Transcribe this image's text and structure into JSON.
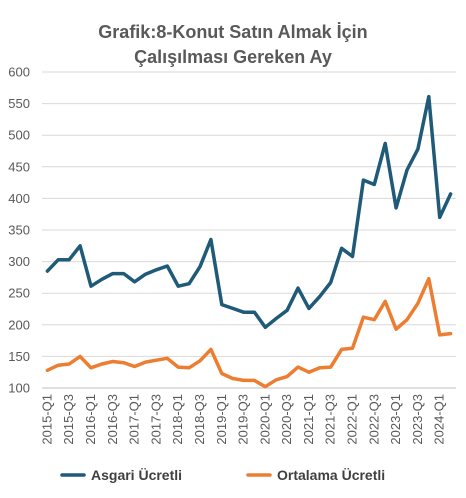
{
  "chart_data": {
    "type": "line",
    "title_lines": [
      "Grafik:8-Konut Satın Almak İçin",
      "Çalışılması Gereken Ay"
    ],
    "xlabel": "",
    "ylabel": "",
    "ylim": [
      100,
      600
    ],
    "yticks": [
      100,
      150,
      200,
      250,
      300,
      350,
      400,
      450,
      500,
      550,
      600
    ],
    "grid": true,
    "legend_position": "bottom",
    "x": [
      "2015-Q1",
      "2015-Q2",
      "2015-Q3",
      "2015-Q4",
      "2016-Q1",
      "2016-Q2",
      "2016-Q3",
      "2016-Q4",
      "2017-Q1",
      "2017-Q2",
      "2017-Q3",
      "2017-Q4",
      "2018-Q1",
      "2018-Q2",
      "2018-Q3",
      "2018-Q4",
      "2019-Q1",
      "2019-Q2",
      "2019-Q3",
      "2019-Q4",
      "2020-Q1",
      "2020-Q2",
      "2020-Q3",
      "2020-Q4",
      "2021-Q1",
      "2021-Q2",
      "2021-Q3",
      "2021-Q4",
      "2022-Q1",
      "2022-Q2",
      "2022-Q3",
      "2022-Q4",
      "2023-Q1",
      "2023-Q2",
      "2023-Q3",
      "2023-Q4",
      "2024-Q1",
      "2024-Q2"
    ],
    "xtick_labels": [
      "2015-Q1",
      "2015-Q3",
      "2016-Q1",
      "2016-Q3",
      "2017-Q1",
      "2017-Q3",
      "2018-Q1",
      "2018-Q3",
      "2019-Q1",
      "2019-Q3",
      "2020-Q1",
      "2020-Q3",
      "2021-Q1",
      "2021-Q3",
      "2022-Q1",
      "2022-Q3",
      "2023-Q1",
      "2023-Q3",
      "2024-Q1"
    ],
    "series": [
      {
        "name": "Asgari Ücretli",
        "color": "#1f5a78",
        "values": [
          285,
          303,
          303,
          325,
          261,
          272,
          281,
          281,
          268,
          280,
          287,
          293,
          261,
          265,
          292,
          335,
          232,
          226,
          220,
          220,
          196,
          210,
          223,
          258,
          226,
          245,
          267,
          321,
          308,
          429,
          422,
          487,
          385,
          445,
          478,
          561,
          370,
          407
        ]
      },
      {
        "name": "Ortalama Ücretli",
        "color": "#ed7d31",
        "values": [
          128,
          136,
          138,
          150,
          132,
          138,
          142,
          140,
          134,
          141,
          144,
          147,
          133,
          132,
          143,
          161,
          123,
          115,
          112,
          112,
          102,
          113,
          118,
          133,
          125,
          132,
          133,
          161,
          163,
          212,
          208,
          237,
          193,
          208,
          234,
          273,
          184,
          186
        ]
      }
    ]
  }
}
